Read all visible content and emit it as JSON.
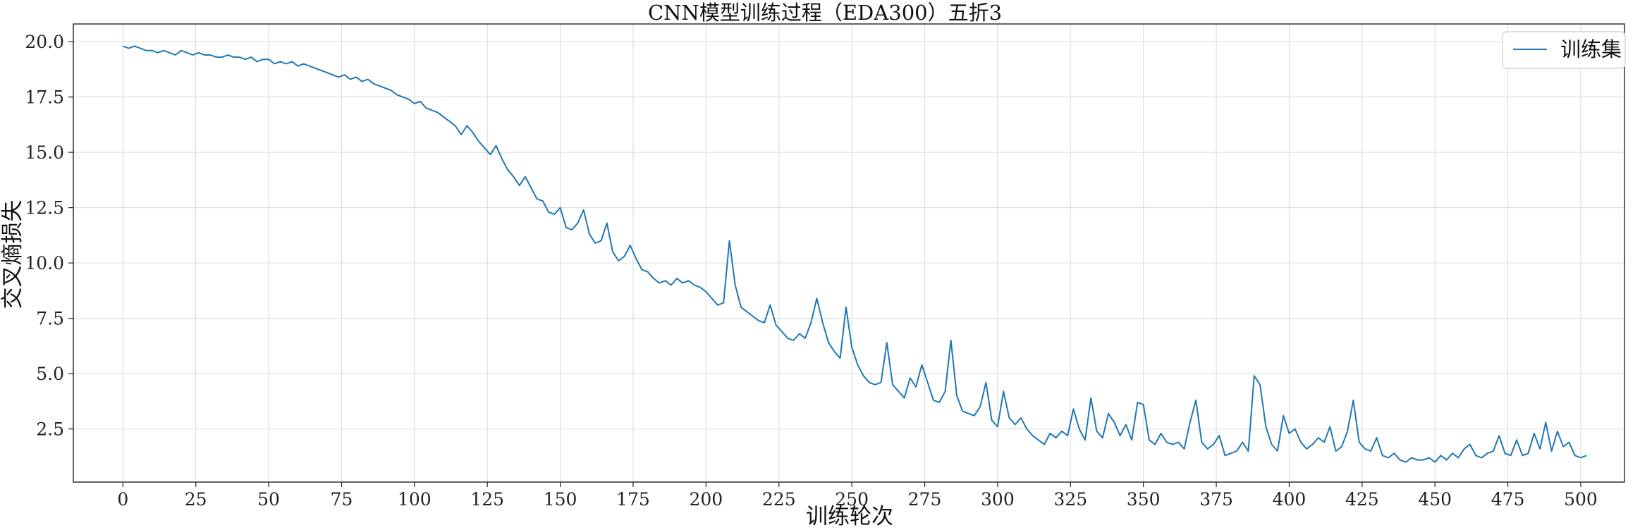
{
  "chart_data": {
    "type": "line",
    "title": "CNN模型训练过程（EDA300）五折3",
    "xlabel": "训练轮次",
    "ylabel": "交叉熵损失",
    "xlim": [
      -17,
      515
    ],
    "ylim": [
      0.1,
      20.8
    ],
    "xticks": [
      0,
      25,
      50,
      75,
      100,
      125,
      150,
      175,
      200,
      225,
      250,
      275,
      300,
      325,
      350,
      375,
      400,
      425,
      450,
      475,
      500
    ],
    "yticks": [
      2.5,
      5.0,
      7.5,
      10.0,
      12.5,
      15.0,
      17.5,
      20.0
    ],
    "xtick_labels": [
      "0",
      "25",
      "50",
      "75",
      "100",
      "125",
      "150",
      "175",
      "200",
      "225",
      "250",
      "275",
      "300",
      "325",
      "350",
      "375",
      "400",
      "425",
      "450",
      "475",
      "500"
    ],
    "ytick_labels": [
      "2.5",
      "5.0",
      "7.5",
      "10.0",
      "12.5",
      "15.0",
      "17.5",
      "20.0"
    ],
    "grid": true,
    "legend_position": "top-right",
    "series": [
      {
        "name": "训练集",
        "color": "#1f77b4",
        "points": [
          [
            0,
            19.8
          ],
          [
            2,
            19.7
          ],
          [
            4,
            19.8
          ],
          [
            6,
            19.7
          ],
          [
            8,
            19.6
          ],
          [
            10,
            19.6
          ],
          [
            12,
            19.5
          ],
          [
            14,
            19.6
          ],
          [
            16,
            19.5
          ],
          [
            18,
            19.4
          ],
          [
            20,
            19.6
          ],
          [
            22,
            19.5
          ],
          [
            24,
            19.4
          ],
          [
            26,
            19.5
          ],
          [
            28,
            19.4
          ],
          [
            30,
            19.4
          ],
          [
            32,
            19.3
          ],
          [
            34,
            19.3
          ],
          [
            36,
            19.4
          ],
          [
            38,
            19.3
          ],
          [
            40,
            19.3
          ],
          [
            42,
            19.2
          ],
          [
            44,
            19.3
          ],
          [
            46,
            19.1
          ],
          [
            48,
            19.2
          ],
          [
            50,
            19.2
          ],
          [
            52,
            19.0
          ],
          [
            54,
            19.1
          ],
          [
            56,
            19.0
          ],
          [
            58,
            19.1
          ],
          [
            60,
            18.9
          ],
          [
            62,
            19.0
          ],
          [
            64,
            18.9
          ],
          [
            66,
            18.8
          ],
          [
            68,
            18.7
          ],
          [
            70,
            18.6
          ],
          [
            72,
            18.5
          ],
          [
            74,
            18.4
          ],
          [
            76,
            18.5
          ],
          [
            78,
            18.3
          ],
          [
            80,
            18.4
          ],
          [
            82,
            18.2
          ],
          [
            84,
            18.3
          ],
          [
            86,
            18.1
          ],
          [
            88,
            18.0
          ],
          [
            90,
            17.9
          ],
          [
            92,
            17.8
          ],
          [
            94,
            17.6
          ],
          [
            96,
            17.5
          ],
          [
            98,
            17.4
          ],
          [
            100,
            17.2
          ],
          [
            102,
            17.3
          ],
          [
            104,
            17.0
          ],
          [
            106,
            16.9
          ],
          [
            108,
            16.8
          ],
          [
            110,
            16.6
          ],
          [
            112,
            16.4
          ],
          [
            114,
            16.2
          ],
          [
            116,
            15.8
          ],
          [
            118,
            16.2
          ],
          [
            120,
            15.9
          ],
          [
            122,
            15.5
          ],
          [
            124,
            15.2
          ],
          [
            126,
            14.9
          ],
          [
            128,
            15.3
          ],
          [
            130,
            14.7
          ],
          [
            132,
            14.2
          ],
          [
            134,
            13.9
          ],
          [
            136,
            13.5
          ],
          [
            138,
            13.9
          ],
          [
            140,
            13.4
          ],
          [
            142,
            12.9
          ],
          [
            144,
            12.8
          ],
          [
            146,
            12.3
          ],
          [
            148,
            12.2
          ],
          [
            150,
            12.5
          ],
          [
            152,
            11.6
          ],
          [
            154,
            11.5
          ],
          [
            156,
            11.8
          ],
          [
            158,
            12.4
          ],
          [
            160,
            11.3
          ],
          [
            162,
            10.9
          ],
          [
            164,
            11.0
          ],
          [
            166,
            11.8
          ],
          [
            168,
            10.5
          ],
          [
            170,
            10.1
          ],
          [
            172,
            10.3
          ],
          [
            174,
            10.8
          ],
          [
            176,
            10.2
          ],
          [
            178,
            9.7
          ],
          [
            180,
            9.6
          ],
          [
            182,
            9.3
          ],
          [
            184,
            9.1
          ],
          [
            186,
            9.2
          ],
          [
            188,
            9.0
          ],
          [
            190,
            9.3
          ],
          [
            192,
            9.1
          ],
          [
            194,
            9.2
          ],
          [
            196,
            9.0
          ],
          [
            198,
            8.9
          ],
          [
            200,
            8.7
          ],
          [
            202,
            8.4
          ],
          [
            204,
            8.1
          ],
          [
            206,
            8.2
          ],
          [
            208,
            11.0
          ],
          [
            210,
            9.0
          ],
          [
            212,
            8.0
          ],
          [
            214,
            7.8
          ],
          [
            216,
            7.6
          ],
          [
            218,
            7.4
          ],
          [
            220,
            7.3
          ],
          [
            222,
            8.1
          ],
          [
            224,
            7.2
          ],
          [
            226,
            6.9
          ],
          [
            228,
            6.6
          ],
          [
            230,
            6.5
          ],
          [
            232,
            6.8
          ],
          [
            234,
            6.6
          ],
          [
            236,
            7.3
          ],
          [
            238,
            8.4
          ],
          [
            240,
            7.3
          ],
          [
            242,
            6.4
          ],
          [
            244,
            6.0
          ],
          [
            246,
            5.7
          ],
          [
            248,
            8.0
          ],
          [
            250,
            6.2
          ],
          [
            252,
            5.4
          ],
          [
            254,
            4.9
          ],
          [
            256,
            4.6
          ],
          [
            258,
            4.5
          ],
          [
            260,
            4.6
          ],
          [
            262,
            6.4
          ],
          [
            264,
            4.5
          ],
          [
            266,
            4.2
          ],
          [
            268,
            3.9
          ],
          [
            270,
            4.8
          ],
          [
            272,
            4.4
          ],
          [
            274,
            5.4
          ],
          [
            276,
            4.6
          ],
          [
            278,
            3.8
          ],
          [
            280,
            3.7
          ],
          [
            282,
            4.2
          ],
          [
            284,
            6.5
          ],
          [
            286,
            4.0
          ],
          [
            288,
            3.3
          ],
          [
            290,
            3.2
          ],
          [
            292,
            3.1
          ],
          [
            294,
            3.5
          ],
          [
            296,
            4.6
          ],
          [
            298,
            2.9
          ],
          [
            300,
            2.6
          ],
          [
            302,
            4.2
          ],
          [
            304,
            3.0
          ],
          [
            306,
            2.7
          ],
          [
            308,
            3.0
          ],
          [
            310,
            2.5
          ],
          [
            312,
            2.2
          ],
          [
            314,
            2.0
          ],
          [
            316,
            1.8
          ],
          [
            318,
            2.3
          ],
          [
            320,
            2.1
          ],
          [
            322,
            2.4
          ],
          [
            324,
            2.2
          ],
          [
            326,
            3.4
          ],
          [
            328,
            2.5
          ],
          [
            330,
            2.0
          ],
          [
            332,
            3.9
          ],
          [
            334,
            2.4
          ],
          [
            336,
            2.1
          ],
          [
            338,
            3.2
          ],
          [
            340,
            2.8
          ],
          [
            342,
            2.2
          ],
          [
            344,
            2.7
          ],
          [
            346,
            2.0
          ],
          [
            348,
            3.7
          ],
          [
            350,
            3.6
          ],
          [
            352,
            2.0
          ],
          [
            354,
            1.8
          ],
          [
            356,
            2.3
          ],
          [
            358,
            1.9
          ],
          [
            360,
            1.8
          ],
          [
            362,
            1.9
          ],
          [
            364,
            1.6
          ],
          [
            366,
            2.8
          ],
          [
            368,
            3.8
          ],
          [
            370,
            1.9
          ],
          [
            372,
            1.6
          ],
          [
            374,
            1.8
          ],
          [
            376,
            2.2
          ],
          [
            378,
            1.3
          ],
          [
            380,
            1.4
          ],
          [
            382,
            1.5
          ],
          [
            384,
            1.9
          ],
          [
            386,
            1.5
          ],
          [
            388,
            4.9
          ],
          [
            390,
            4.5
          ],
          [
            392,
            2.6
          ],
          [
            394,
            1.8
          ],
          [
            396,
            1.5
          ],
          [
            398,
            3.1
          ],
          [
            400,
            2.3
          ],
          [
            402,
            2.5
          ],
          [
            404,
            1.9
          ],
          [
            406,
            1.6
          ],
          [
            408,
            1.8
          ],
          [
            410,
            2.1
          ],
          [
            412,
            1.9
          ],
          [
            414,
            2.6
          ],
          [
            416,
            1.5
          ],
          [
            418,
            1.7
          ],
          [
            420,
            2.4
          ],
          [
            422,
            3.8
          ],
          [
            424,
            1.9
          ],
          [
            426,
            1.6
          ],
          [
            428,
            1.5
          ],
          [
            430,
            2.1
          ],
          [
            432,
            1.3
          ],
          [
            434,
            1.2
          ],
          [
            436,
            1.4
          ],
          [
            438,
            1.1
          ],
          [
            440,
            1.0
          ],
          [
            442,
            1.2
          ],
          [
            444,
            1.1
          ],
          [
            446,
            1.1
          ],
          [
            448,
            1.2
          ],
          [
            450,
            1.0
          ],
          [
            452,
            1.3
          ],
          [
            454,
            1.1
          ],
          [
            456,
            1.4
          ],
          [
            458,
            1.2
          ],
          [
            460,
            1.6
          ],
          [
            462,
            1.8
          ],
          [
            464,
            1.3
          ],
          [
            466,
            1.2
          ],
          [
            468,
            1.4
          ],
          [
            470,
            1.5
          ],
          [
            472,
            2.2
          ],
          [
            474,
            1.4
          ],
          [
            476,
            1.3
          ],
          [
            478,
            2.0
          ],
          [
            480,
            1.3
          ],
          [
            482,
            1.4
          ],
          [
            484,
            2.3
          ],
          [
            486,
            1.6
          ],
          [
            488,
            2.8
          ],
          [
            490,
            1.5
          ],
          [
            492,
            2.4
          ],
          [
            494,
            1.7
          ],
          [
            496,
            1.9
          ],
          [
            498,
            1.3
          ],
          [
            500,
            1.2
          ],
          [
            502,
            1.3
          ]
        ]
      }
    ]
  }
}
